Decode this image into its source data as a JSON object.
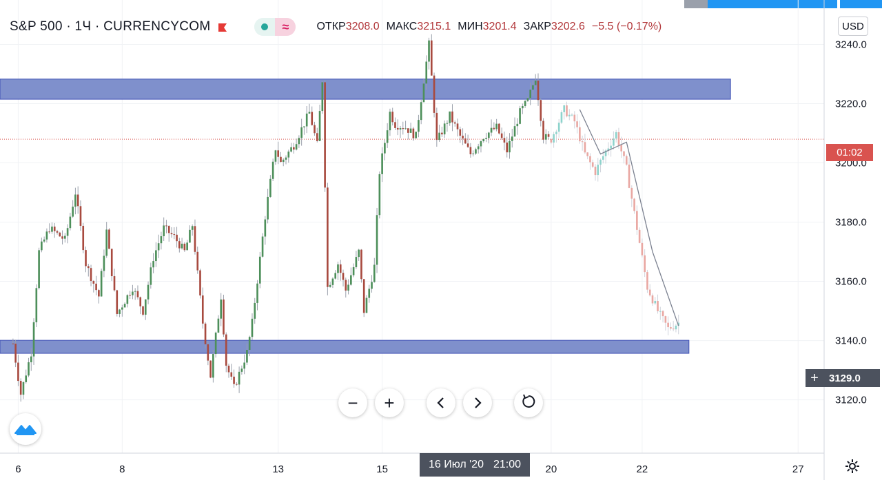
{
  "header": {
    "symbol": "S&P 500 · 1Ч · CURRENCYCOM",
    "ohlc": [
      {
        "label": "ОТКР",
        "value": "3208.0"
      },
      {
        "label": "МАКС",
        "value": "3215.1"
      },
      {
        "label": "МИН",
        "value": "3201.4"
      },
      {
        "label": "ЗАКР",
        "value": "3202.6"
      }
    ],
    "change": "−5.5 (−0.17%)",
    "currency": "USD"
  },
  "price_tags": {
    "countdown": "01:02",
    "crosshair": "3129.0"
  },
  "crosshair_time": {
    "date": "16 Июл '20",
    "time": "21:00"
  },
  "colors": {
    "up": "#26a69a",
    "up_candle": "#4d8f5a",
    "down": "#a84a3f",
    "zone_fill": "#7f90cc",
    "zone_stroke": "#3f51b5",
    "countdown_bg": "#d9534f",
    "crosshair_bg": "#4c525e"
  },
  "icons": {
    "flag": "red-flag-icon",
    "zoom_out": "minus-icon",
    "zoom_in": "plus-icon",
    "scroll_left": "chevron-left-icon",
    "scroll_right": "chevron-right-icon",
    "reset": "reset-icon",
    "settings": "gear-icon",
    "logo": "tradingview-logo-icon"
  },
  "controls": {
    "zoom_out": "−",
    "zoom_in": "+",
    "left": "‹",
    "right": "›"
  },
  "chart_data": {
    "type": "candlestick",
    "y_ticks": [
      "3240.0",
      "3220.0",
      "3200.0",
      "3180.0",
      "3160.0",
      "3140.0",
      "3120.0"
    ],
    "y_tick_values": [
      3240,
      3220,
      3200,
      3180,
      3160,
      3140,
      3120
    ],
    "ylim": [
      3102,
      3255
    ],
    "x_ticks": [
      "6",
      "8",
      "13",
      "15",
      "20",
      "22",
      "27"
    ],
    "x_tick_positions": [
      2,
      42,
      102,
      142,
      207,
      242,
      302
    ],
    "xlim": [
      -5,
      312
    ],
    "last_price": 3208.0,
    "crosshair_price": 3129.0,
    "zones": [
      {
        "name": "resistance",
        "low": 3221.5,
        "high": 3228.3,
        "x_start": -5,
        "x_end": 276
      },
      {
        "name": "support",
        "low": 3135.7,
        "high": 3140.1,
        "x_start": -5,
        "x_end": 260
      }
    ],
    "projection": {
      "x": [
        218,
        226,
        236,
        246,
        256
      ],
      "y": [
        3218,
        3203,
        3207,
        3170,
        3145
      ]
    },
    "ohlc_waypoints": {
      "x": [
        0,
        3,
        7,
        10,
        14,
        20,
        24,
        28,
        33,
        36,
        40,
        46,
        50,
        54,
        58,
        62,
        66,
        69,
        73,
        76,
        80,
        82,
        85,
        90,
        92,
        97,
        101,
        103,
        108,
        114,
        117,
        119,
        121,
        125,
        128,
        133,
        135,
        139,
        141,
        145,
        147,
        151,
        155,
        158,
        160,
        163,
        168,
        172,
        176,
        181,
        186,
        190,
        195,
        198,
        201,
        204,
        206
      ],
      "y": [
        3139,
        3122,
        3136,
        3170,
        3178,
        3174,
        3190,
        3166,
        3155,
        3177,
        3149,
        3158,
        3150,
        3168,
        3178,
        3175,
        3170,
        3179,
        3146,
        3128,
        3155,
        3132,
        3124,
        3136,
        3146,
        3182,
        3205,
        3200,
        3206,
        3217,
        3206,
        3228,
        3158,
        3166,
        3157,
        3170,
        3150,
        3165,
        3197,
        3217,
        3213,
        3212,
        3209,
        3228,
        3240,
        3207,
        3216,
        3209,
        3203,
        3209,
        3212,
        3204,
        3217,
        3221,
        3229,
        3209,
        3208
      ]
    },
    "projected_waypoints": {
      "x": [
        207,
        212,
        216,
        220,
        224,
        228,
        232,
        236,
        240,
        244,
        248,
        252,
        256
      ],
      "y": [
        3208,
        3218,
        3214,
        3203,
        3197,
        3204,
        3210,
        3198,
        3178,
        3158,
        3150,
        3144,
        3146
      ]
    }
  }
}
